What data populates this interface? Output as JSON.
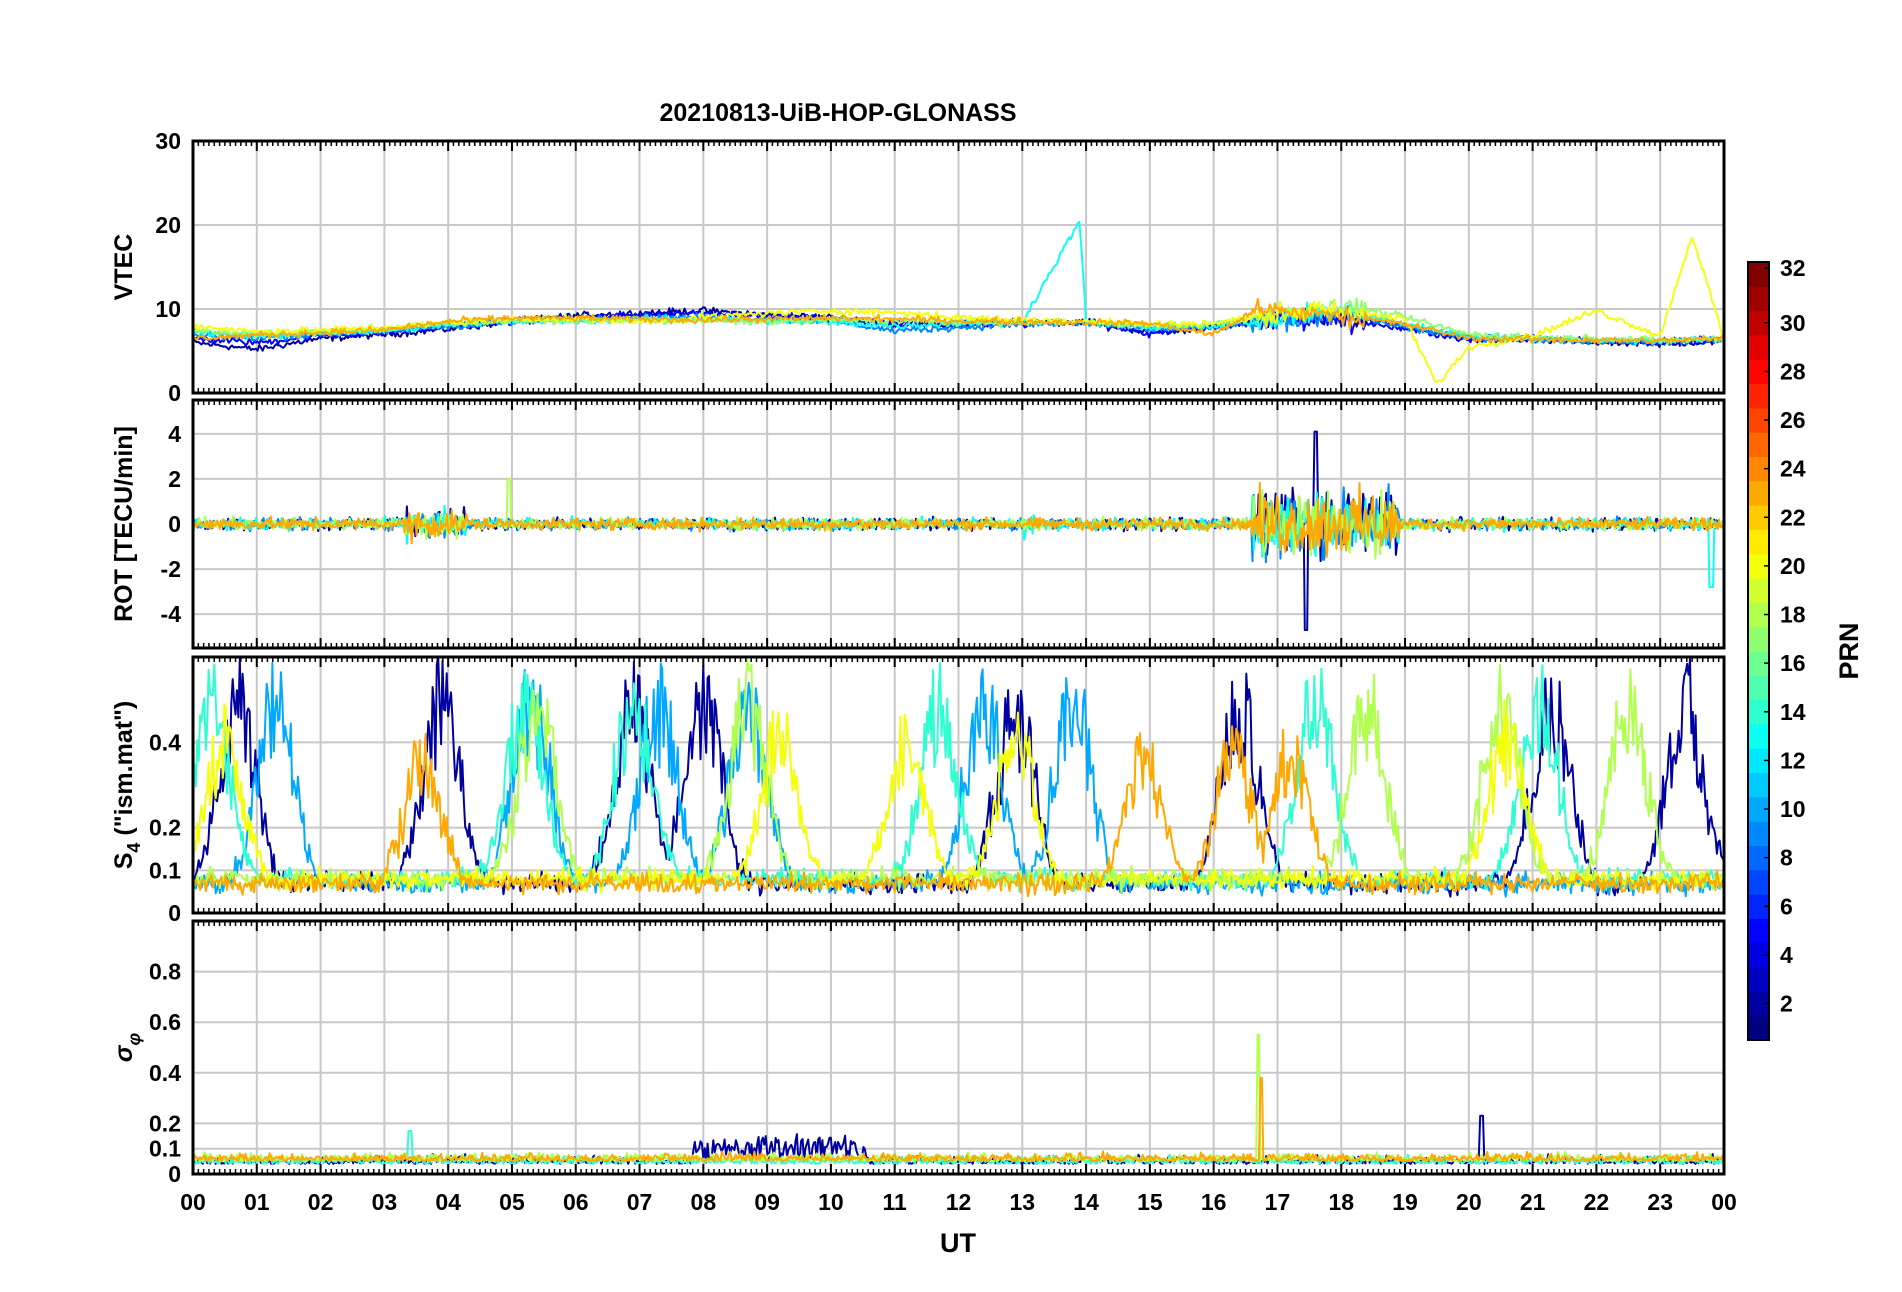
{
  "chart_data": {
    "type": "line",
    "title": "20210813-UiB-HOP-GLONASS",
    "xlabel": "UT",
    "x_ticks": [
      "00",
      "01",
      "02",
      "03",
      "04",
      "05",
      "06",
      "07",
      "08",
      "09",
      "10",
      "11",
      "12",
      "13",
      "14",
      "15",
      "16",
      "17",
      "18",
      "19",
      "20",
      "21",
      "22",
      "23",
      "00"
    ],
    "xlim_hours": [
      0,
      24
    ],
    "colorbar": {
      "label": "PRN",
      "range": [
        1,
        32
      ],
      "ticks": [
        "2",
        "4",
        "6",
        "8",
        "10",
        "12",
        "14",
        "16",
        "18",
        "20",
        "22",
        "24",
        "26",
        "28",
        "30",
        "32"
      ],
      "colormap": "jet"
    },
    "panels": [
      {
        "id": "vtec",
        "ylabel": "VTEC",
        "ylim": [
          0,
          30
        ],
        "yticks": [
          "0",
          "10",
          "20",
          "30"
        ],
        "series": [
          {
            "prn": 2,
            "points": [
              [
                0,
                6.0
              ],
              [
                1,
                5.2
              ],
              [
                2,
                6.5
              ],
              [
                3,
                7.0
              ],
              [
                4,
                7.6
              ],
              [
                5,
                8.5
              ],
              [
                6,
                9.2
              ],
              [
                7,
                9.5
              ],
              [
                8,
                9.8
              ],
              [
                9,
                9.3
              ],
              [
                10,
                9.0
              ],
              [
                11,
                8.2
              ],
              [
                12,
                8.0
              ],
              [
                13,
                8.4
              ],
              [
                14,
                8.6
              ],
              [
                15,
                7.2
              ],
              [
                16,
                7.8
              ],
              [
                17,
                9.0
              ],
              [
                18,
                9.0
              ],
              [
                19,
                8.0
              ],
              [
                20,
                6.2
              ],
              [
                21,
                6.3
              ],
              [
                22,
                6.0
              ],
              [
                23,
                5.8
              ],
              [
                24,
                6.2
              ]
            ]
          },
          {
            "prn": 5,
            "points": [
              [
                0,
                6.5
              ],
              [
                1,
                6.0
              ],
              [
                2,
                6.8
              ],
              [
                3,
                7.2
              ],
              [
                4,
                8.0
              ],
              [
                5,
                8.6
              ],
              [
                6,
                9.0
              ],
              [
                7,
                9.3
              ],
              [
                8,
                9.6
              ],
              [
                9,
                9.1
              ],
              [
                10,
                8.8
              ],
              [
                11,
                8.4
              ],
              [
                12,
                8.2
              ],
              [
                13,
                8.3
              ],
              [
                14,
                8.4
              ],
              [
                15,
                7.0
              ],
              [
                16,
                8.0
              ],
              [
                17,
                8.6
              ],
              [
                18,
                8.8
              ],
              [
                19,
                7.6
              ],
              [
                20,
                6.4
              ],
              [
                21,
                6.6
              ],
              [
                22,
                6.2
              ],
              [
                23,
                6.0
              ],
              [
                24,
                6.4
              ]
            ]
          },
          {
            "prn": 9,
            "points": [
              [
                0,
                6.8
              ],
              [
                1,
                6.6
              ],
              [
                2,
                7.0
              ],
              [
                3,
                7.3
              ],
              [
                4,
                8.0
              ],
              [
                5,
                8.4
              ],
              [
                6,
                8.8
              ],
              [
                7,
                9.0
              ],
              [
                8,
                9.0
              ],
              [
                9,
                8.8
              ],
              [
                10,
                8.6
              ],
              [
                11,
                7.4
              ],
              [
                12,
                7.8
              ],
              [
                13,
                8.2
              ],
              [
                14,
                8.3
              ],
              [
                15,
                7.6
              ],
              [
                16,
                7.8
              ],
              [
                17,
                8.5
              ],
              [
                18,
                9.5
              ],
              [
                19,
                7.8
              ],
              [
                20,
                6.6
              ],
              [
                21,
                6.4
              ],
              [
                22,
                6.2
              ],
              [
                23,
                6.1
              ],
              [
                24,
                6.3
              ]
            ]
          },
          {
            "prn": 13,
            "points": [
              [
                0,
                7.2
              ],
              [
                1,
                6.8
              ],
              [
                2,
                7.1
              ],
              [
                3,
                7.4
              ],
              [
                4,
                8.2
              ],
              [
                5,
                8.5
              ],
              [
                6,
                8.6
              ],
              [
                7,
                8.8
              ],
              [
                8,
                8.8
              ],
              [
                9,
                8.6
              ],
              [
                10,
                8.4
              ],
              [
                11,
                8.0
              ],
              [
                12,
                8.3
              ],
              [
                13,
                8.5
              ],
              [
                13.9,
                20.5
              ],
              [
                14,
                8.4
              ],
              [
                15,
                7.8
              ],
              [
                16,
                7.9
              ],
              [
                17,
                8.9
              ],
              [
                18,
                9.8
              ],
              [
                19,
                8.2
              ],
              [
                20,
                6.8
              ],
              [
                21,
                6.5
              ],
              [
                22,
                6.3
              ],
              [
                23,
                6.2
              ],
              [
                24,
                6.4
              ]
            ]
          },
          {
            "prn": 17,
            "points": [
              [
                0,
                7.5
              ],
              [
                1,
                7.0
              ],
              [
                2,
                7.3
              ],
              [
                3,
                7.6
              ],
              [
                4,
                8.3
              ],
              [
                5,
                8.6
              ],
              [
                6,
                8.7
              ],
              [
                7,
                8.6
              ],
              [
                8,
                8.6
              ],
              [
                9,
                8.5
              ],
              [
                10,
                8.7
              ],
              [
                11,
                8.6
              ],
              [
                12,
                8.4
              ],
              [
                13,
                8.3
              ],
              [
                14,
                8.5
              ],
              [
                15,
                8.0
              ],
              [
                16,
                8.2
              ],
              [
                17,
                9.3
              ],
              [
                18,
                10.5
              ],
              [
                19,
                9.0
              ],
              [
                20,
                7.0
              ],
              [
                21,
                6.6
              ],
              [
                22,
                6.5
              ],
              [
                23,
                6.3
              ],
              [
                24,
                6.5
              ]
            ]
          },
          {
            "prn": 20,
            "points": [
              [
                0,
                8.0
              ],
              [
                1,
                7.3
              ],
              [
                2,
                7.5
              ],
              [
                3,
                7.8
              ],
              [
                4,
                8.4
              ],
              [
                5,
                8.8
              ],
              [
                6,
                8.8
              ],
              [
                7,
                8.5
              ],
              [
                8,
                9.0
              ],
              [
                9,
                9.5
              ],
              [
                10,
                9.8
              ],
              [
                11,
                9.6
              ],
              [
                12,
                9.0
              ],
              [
                13,
                8.7
              ],
              [
                14,
                8.6
              ],
              [
                15,
                8.2
              ],
              [
                16,
                8.3
              ],
              [
                17,
                9.5
              ],
              [
                18,
                9.8
              ],
              [
                19,
                8.8
              ],
              [
                19.5,
                1.0
              ],
              [
                20,
                5.5
              ],
              [
                21,
                6.8
              ],
              [
                22,
                9.8
              ],
              [
                23,
                6.8
              ],
              [
                23.5,
                18.8
              ],
              [
                24,
                6.4
              ]
            ]
          },
          {
            "prn": 23,
            "points": [
              [
                0,
                6.5
              ],
              [
                1,
                6.9
              ],
              [
                2,
                7.2
              ],
              [
                3,
                7.5
              ],
              [
                4,
                8.5
              ],
              [
                5,
                8.9
              ],
              [
                6,
                8.9
              ],
              [
                7,
                8.8
              ],
              [
                8,
                8.7
              ],
              [
                9,
                8.8
              ],
              [
                10,
                8.9
              ],
              [
                11,
                8.8
              ],
              [
                12,
                8.6
              ],
              [
                13,
                8.5
              ],
              [
                14,
                8.4
              ],
              [
                15,
                8.3
              ],
              [
                16,
                7.0
              ],
              [
                16.7,
                10.0
              ],
              [
                17,
                9.8
              ],
              [
                18,
                9.2
              ],
              [
                19,
                8.2
              ],
              [
                20,
                6.5
              ],
              [
                21,
                6.4
              ],
              [
                22,
                6.3
              ],
              [
                23,
                6.2
              ],
              [
                24,
                6.5
              ]
            ]
          }
        ]
      },
      {
        "id": "rot",
        "ylabel": "ROT [TECU/min]",
        "ylim": [
          -5.5,
          5.5
        ],
        "yticks": [
          "-4",
          "-2",
          "0",
          "2",
          "4"
        ],
        "series": [
          {
            "prn": 2,
            "activity": "high burst 16.7-18.9 UT, extremes -4.7 to 4.1 near 17.5 UT; moderate 3.3-4.3 UT"
          },
          {
            "prn": 9,
            "activity": "quiet +/-0.5 most of day; disturbed 16.5-19 UT"
          },
          {
            "prn": 13,
            "activity": "spike to 1.5 near 13.0 UT; spike to -2.8 near 23.8 UT"
          },
          {
            "prn": 18,
            "activity": "spike to 2.0 near 5.0 UT; disturbed 16.6-18.5 UT"
          },
          {
            "prn": 23,
            "activity": "disturbed 3.3-4.2 UT and 16.7-18.5 UT"
          }
        ]
      },
      {
        "id": "s4",
        "ylabel": "S4 (\"ism.mat\")",
        "ylabel_main": "S",
        "ylabel_sub": "4",
        "ylabel_rest": " (\"ism.mat\")",
        "ylim": [
          0,
          0.6
        ],
        "yticks": [
          "0",
          "0.1",
          "0.2",
          "0.4"
        ],
        "series": [
          {
            "prn": 2,
            "range": [
              0.05,
              0.6
            ],
            "peaks_ut": [
              0.7,
              3.9,
              6.9,
              8.0,
              12.9,
              16.4,
              21.3,
              23.4
            ]
          },
          {
            "prn": 10,
            "range": [
              0.05,
              0.6
            ],
            "peaks_ut": [
              1.3,
              5.3,
              7.3,
              8.7,
              12.4,
              13.8
            ]
          },
          {
            "prn": 14,
            "range": [
              0.06,
              0.6
            ],
            "peaks_ut": [
              0.3,
              5.2,
              6.9,
              11.7,
              17.6,
              21.1
            ]
          },
          {
            "prn": 18,
            "range": [
              0.06,
              0.6
            ],
            "peaks_ut": [
              5.4,
              8.7,
              18.4,
              20.5,
              22.5
            ]
          },
          {
            "prn": 20,
            "range": [
              0.06,
              0.5
            ],
            "peaks_ut": [
              0.5,
              9.2,
              11.2,
              12.9,
              20.6
            ]
          },
          {
            "prn": 23,
            "range": [
              0.05,
              0.45
            ],
            "peaks_ut": [
              3.6,
              14.9,
              16.3,
              17.2
            ]
          }
        ]
      },
      {
        "id": "sigma_phi",
        "ylabel": "σφ",
        "ylabel_main": "σ",
        "ylabel_sub": "φ",
        "ylim": [
          0,
          1.0
        ],
        "yticks": [
          "0",
          "0.1",
          "0.2",
          "0.4",
          "0.6",
          "0.8"
        ],
        "series": [
          {
            "prn": 2,
            "baseline": 0.04,
            "max": 0.23,
            "max_ut": 20.2,
            "elevated_ut": [
              7.8,
              10.6
            ]
          },
          {
            "prn": 14,
            "baseline": 0.04,
            "max": 0.17,
            "max_ut": 3.4
          },
          {
            "prn": 18,
            "baseline": 0.05,
            "max": 0.55,
            "max_ut": 16.7
          },
          {
            "prn": 23,
            "baseline": 0.05,
            "max": 0.38,
            "max_ut": 16.75
          }
        ]
      }
    ]
  }
}
